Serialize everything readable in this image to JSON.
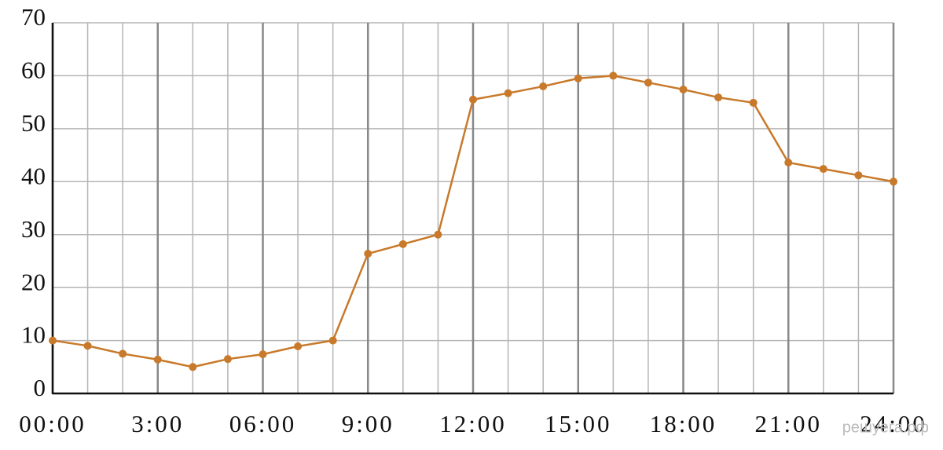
{
  "chart_data": {
    "type": "line",
    "x": [
      0,
      1,
      2,
      3,
      4,
      5,
      6,
      7,
      8,
      9,
      10,
      11,
      12,
      13,
      14,
      15,
      16,
      17,
      18,
      19,
      20,
      21,
      22,
      23,
      24
    ],
    "series": [
      {
        "color": "#c8792a",
        "values": [
          10,
          9,
          7.5,
          6.4,
          5,
          6.5,
          7.4,
          8.9,
          10,
          26.4,
          28.2,
          30,
          55.5,
          56.7,
          58,
          59.5,
          60,
          58.7,
          57.4,
          55.9,
          54.9,
          43.6,
          42.4,
          41.2,
          40
        ]
      }
    ],
    "xlim": [
      0,
      24
    ],
    "xticks": [
      {
        "value": 0,
        "label": "00:00"
      },
      {
        "value": 3,
        "label": "3:00"
      },
      {
        "value": 6,
        "label": "06:00"
      },
      {
        "value": 9,
        "label": "9:00"
      },
      {
        "value": 12,
        "label": "12:00"
      },
      {
        "value": 15,
        "label": "15:00"
      },
      {
        "value": 18,
        "label": "18:00"
      },
      {
        "value": 21,
        "label": "21:00"
      },
      {
        "value": 24,
        "label": "24:00"
      }
    ],
    "ylim": [
      0,
      70
    ],
    "yticks": [
      0,
      10,
      20,
      30,
      40,
      50,
      60,
      70
    ],
    "grid": true,
    "watermark": "решуега.рф"
  }
}
